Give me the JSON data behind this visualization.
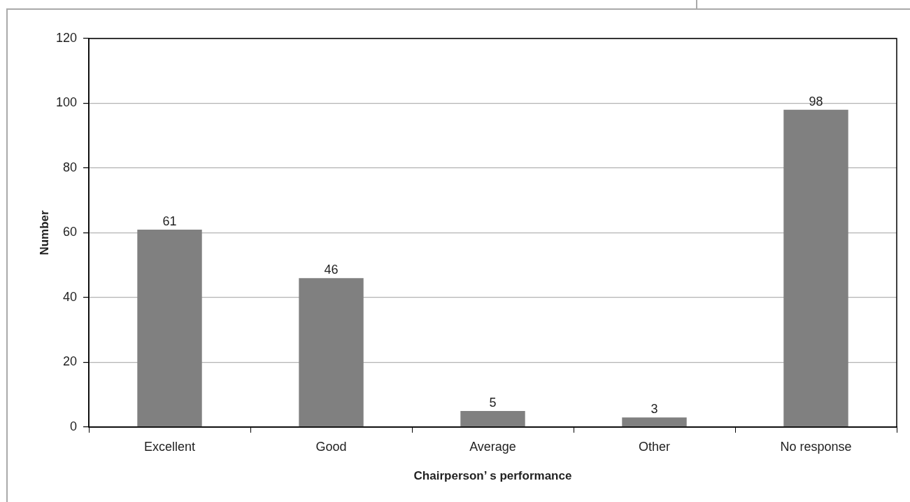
{
  "chart_data": {
    "type": "bar",
    "xlabel": "Chairperson’ s performance",
    "ylabel": "Number",
    "categories": [
      "Excellent",
      "Good",
      "Average",
      "Other",
      "No response"
    ],
    "values": [
      61,
      46,
      5,
      3,
      98
    ],
    "color": "#808080",
    "ylim": [
      0,
      120
    ],
    "yticks": [
      0,
      20,
      40,
      60,
      80,
      100,
      120
    ],
    "grid": "y",
    "data_labels": true
  }
}
